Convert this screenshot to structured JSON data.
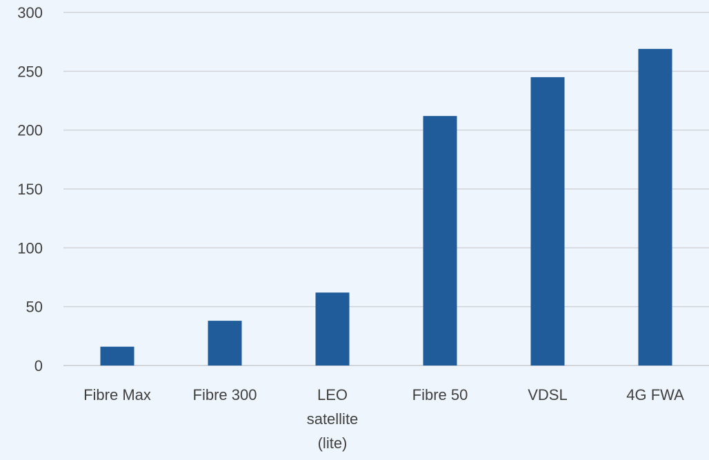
{
  "chart_data": {
    "type": "bar",
    "title": "",
    "xlabel": "",
    "ylabel": "",
    "categories": [
      "Fibre Max",
      "Fibre 300",
      "LEO satellite (lite)",
      "Fibre 50",
      "VDSL",
      "4G FWA"
    ],
    "category_lines": [
      [
        "Fibre Max"
      ],
      [
        "Fibre 300"
      ],
      [
        "LEO",
        "satellite",
        "(lite)"
      ],
      [
        "Fibre 50"
      ],
      [
        "VDSL"
      ],
      [
        "4G FWA"
      ]
    ],
    "values": [
      16,
      38,
      62,
      212,
      245,
      269
    ],
    "ylim": [
      0,
      300
    ],
    "yticks": [
      0,
      50,
      100,
      150,
      200,
      250,
      300
    ],
    "grid": true,
    "legend": "none",
    "bar_color": "#1f5c99",
    "background": "#eef5fc"
  }
}
